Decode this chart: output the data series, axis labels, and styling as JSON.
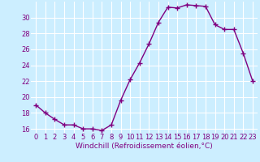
{
  "x": [
    0,
    1,
    2,
    3,
    4,
    5,
    6,
    7,
    8,
    9,
    10,
    11,
    12,
    13,
    14,
    15,
    16,
    17,
    18,
    19,
    20,
    21,
    22,
    23
  ],
  "y": [
    19.0,
    18.0,
    17.2,
    16.5,
    16.5,
    16.0,
    16.0,
    15.8,
    16.5,
    19.6,
    22.2,
    24.3,
    26.7,
    29.4,
    31.3,
    31.2,
    31.6,
    31.5,
    31.4,
    29.1,
    28.5,
    28.5,
    25.5,
    22.0
  ],
  "line_color": "#800080",
  "marker": "+",
  "marker_size": 4,
  "marker_lw": 1.0,
  "line_width": 1.0,
  "bg_color": "#cceeff",
  "grid_color": "#ffffff",
  "xlabel": "Windchill (Refroidissement éolien,°C)",
  "xlabel_color": "#800080",
  "tick_color": "#800080",
  "ylim": [
    15.5,
    32.0
  ],
  "xlim": [
    -0.5,
    23.5
  ],
  "yticks": [
    16,
    18,
    20,
    22,
    24,
    26,
    28,
    30
  ],
  "xtick_labels": [
    "0",
    "1",
    "2",
    "3",
    "4",
    "5",
    "6",
    "7",
    "8",
    "9",
    "10",
    "11",
    "12",
    "13",
    "14",
    "15",
    "16",
    "17",
    "18",
    "19",
    "20",
    "21",
    "22",
    "23"
  ],
  "xlabel_fontsize": 6.5,
  "tick_fontsize": 6.0
}
